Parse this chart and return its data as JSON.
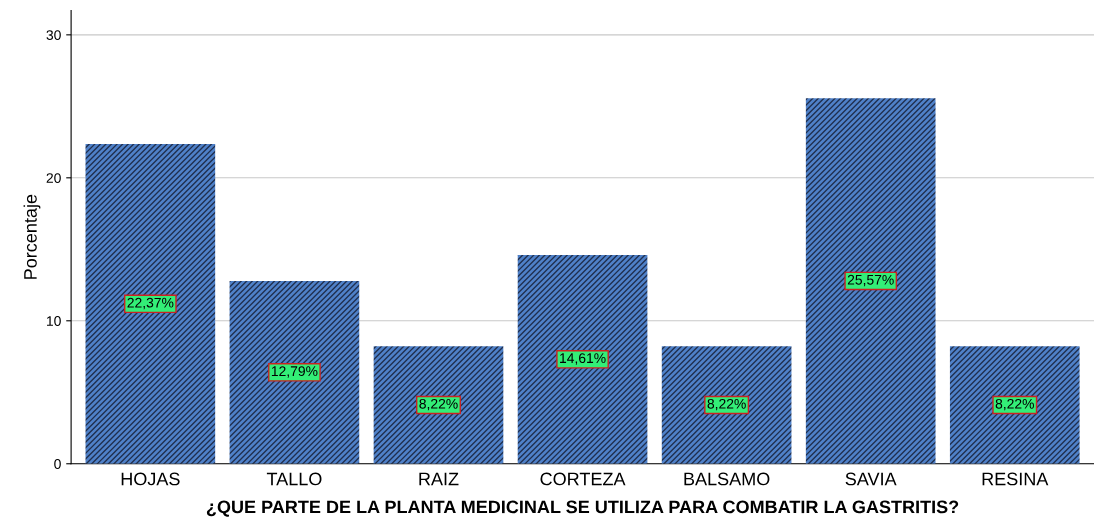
{
  "chart_data": {
    "type": "bar",
    "xlabel": "¿QUE PARTE DE LA PLANTA MEDICINAL SE UTILIZA PARA COMBATIR LA GASTRITIS?",
    "ylabel": "Porcentaje",
    "categories": [
      "HOJAS",
      "TALLO",
      "RAIZ",
      "CORTEZA",
      "BALSAMO",
      "SAVIA",
      "RESINA"
    ],
    "values": [
      22.37,
      12.79,
      8.22,
      14.61,
      8.22,
      25.57,
      8.22
    ],
    "value_labels": [
      "22,37%",
      "12,79%",
      "8,22%",
      "14,61%",
      "8,22%",
      "25,57%",
      "8,22%"
    ],
    "color": "#4f81c9",
    "ylim": [
      0,
      31.7
    ],
    "yticks": [
      0,
      10,
      20,
      30
    ],
    "grid": "y"
  }
}
